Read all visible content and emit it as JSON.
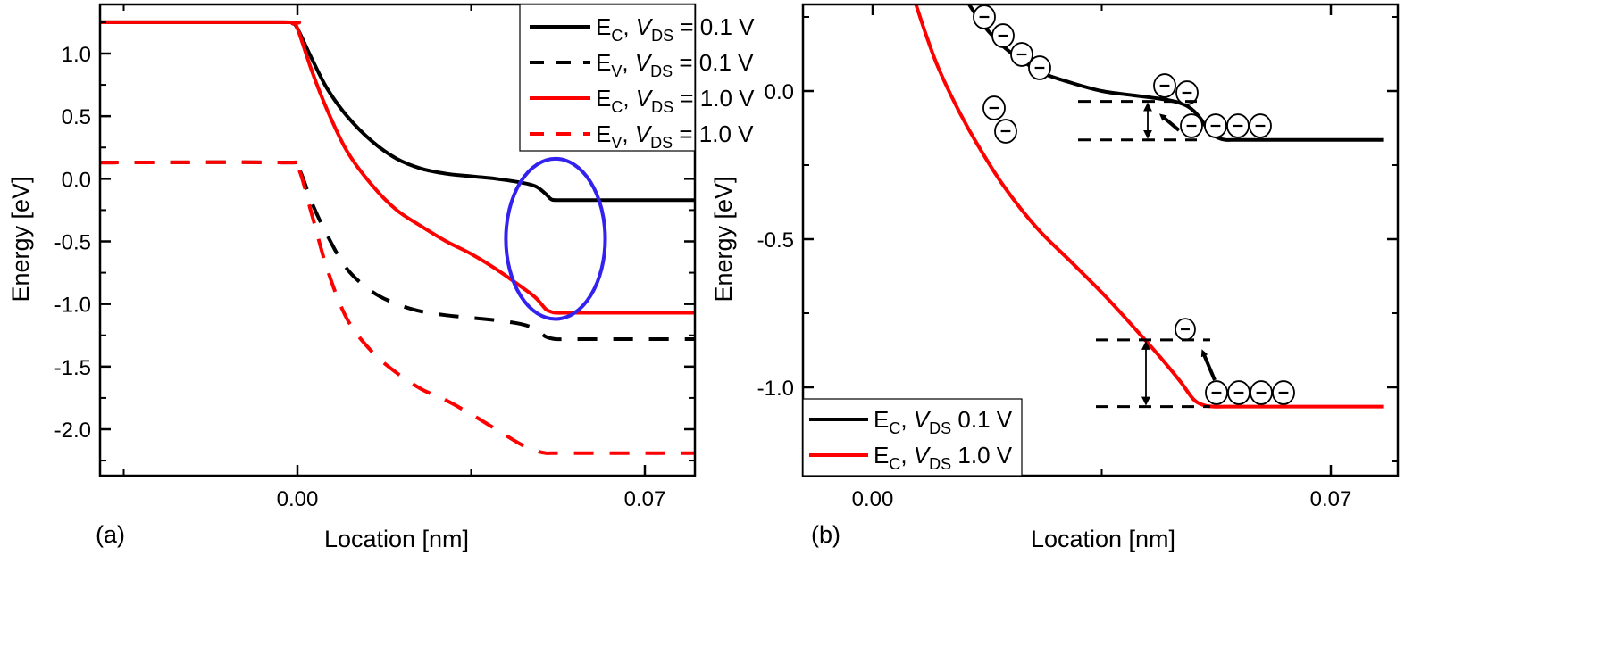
{
  "chart_data": [
    {
      "panel": "(a)",
      "type": "line",
      "xlabel": "Location [nm]",
      "ylabel": "Energy [eV]",
      "xlim": [
        -0.04,
        0.08
      ],
      "ylim": [
        -2.4,
        1.38
      ],
      "xticks": [
        0.0,
        0.07
      ],
      "xtick_labels": [
        "0.00",
        "0.07"
      ],
      "yticks": [
        1.0,
        0.5,
        0.0,
        -0.5,
        -1.0,
        -1.5,
        -2.0
      ],
      "ytick_labels": [
        "1.0",
        "0.5",
        "0.0",
        "-0.5",
        "-1.0",
        "-1.5",
        "-2.0"
      ],
      "grid": false,
      "legend_position": "top-right",
      "series": [
        {
          "name": "E_C, V_DS = 0.1 V",
          "legend": {
            "main": "E",
            "sub": "C",
            "mid": ", ",
            "var": "V",
            "varsub": "DS",
            "tail": " = 0.1 V"
          },
          "color": "#000000",
          "dash": "solid",
          "x": [
            -0.04,
            -0.003,
            -0.001,
            0.0,
            0.003,
            0.006,
            0.01,
            0.015,
            0.02,
            0.025,
            0.03,
            0.035,
            0.04,
            0.045,
            0.048,
            0.05,
            0.051,
            0.052,
            0.055,
            0.06,
            0.07,
            0.08
          ],
          "y": [
            1.25,
            1.25,
            1.24,
            1.2,
            0.95,
            0.72,
            0.5,
            0.3,
            0.16,
            0.08,
            0.04,
            0.02,
            0.0,
            -0.03,
            -0.06,
            -0.12,
            -0.16,
            -0.17,
            -0.17,
            -0.17,
            -0.17,
            -0.17
          ]
        },
        {
          "name": "E_V, V_DS = 0.1 V",
          "legend": {
            "main": "E",
            "sub": "V",
            "mid": ", ",
            "var": "V",
            "varsub": "DS",
            "tail": " = 0.1 V"
          },
          "color": "#000000",
          "dash": "dashed",
          "x": [
            -0.04,
            -0.003,
            0.0,
            0.003,
            0.006,
            0.01,
            0.015,
            0.02,
            0.025,
            0.03,
            0.035,
            0.04,
            0.045,
            0.048,
            0.05,
            0.052,
            0.055,
            0.06,
            0.07,
            0.08
          ],
          "y": [
            0.13,
            0.13,
            0.1,
            -0.2,
            -0.45,
            -0.72,
            -0.9,
            -1.0,
            -1.06,
            -1.09,
            -1.11,
            -1.13,
            -1.16,
            -1.2,
            -1.26,
            -1.28,
            -1.28,
            -1.28,
            -1.28,
            -1.28
          ]
        },
        {
          "name": "E_C, V_DS = 1.0 V",
          "legend": {
            "main": "E",
            "sub": "C",
            "mid": ", ",
            "var": "V",
            "varsub": "DS",
            "tail": " = 1.0 V"
          },
          "color": "#ff0000",
          "dash": "solid",
          "x": [
            -0.04,
            -0.003,
            -0.001,
            0.0,
            0.003,
            0.006,
            0.01,
            0.015,
            0.02,
            0.025,
            0.03,
            0.035,
            0.04,
            0.045,
            0.048,
            0.05,
            0.051,
            0.052,
            0.055,
            0.06,
            0.07,
            0.08
          ],
          "y": [
            1.25,
            1.25,
            1.24,
            1.2,
            0.85,
            0.55,
            0.22,
            -0.05,
            -0.25,
            -0.38,
            -0.5,
            -0.6,
            -0.72,
            -0.86,
            -0.95,
            -1.04,
            -1.06,
            -1.07,
            -1.07,
            -1.07,
            -1.07,
            -1.07
          ]
        },
        {
          "name": "E_V, V_DS = 1.0 V",
          "legend": {
            "main": "E",
            "sub": "V",
            "mid": ", ",
            "var": "V",
            "varsub": "DS",
            "tail": " = 1.0 V"
          },
          "color": "#ff0000",
          "dash": "dashed",
          "x": [
            -0.04,
            -0.003,
            0.0,
            0.003,
            0.006,
            0.01,
            0.015,
            0.02,
            0.025,
            0.03,
            0.035,
            0.04,
            0.045,
            0.048,
            0.05,
            0.052,
            0.055,
            0.06,
            0.07,
            0.08
          ],
          "y": [
            0.13,
            0.13,
            0.1,
            -0.3,
            -0.72,
            -1.12,
            -1.38,
            -1.55,
            -1.68,
            -1.77,
            -1.88,
            -2.0,
            -2.12,
            -2.17,
            -2.19,
            -2.19,
            -2.19,
            -2.19,
            -2.19,
            -2.19
          ]
        }
      ],
      "annotations": [
        {
          "type": "ellipse",
          "description": "highlight of E_C step region",
          "color": "#3322ee",
          "center_x": 0.052,
          "center_y": -0.48,
          "rx": 0.01,
          "ry": 0.64
        }
      ]
    },
    {
      "panel": "(b)",
      "type": "line",
      "xlabel": "Location [nm]",
      "ylabel": "Energy [eV]",
      "xlim": [
        -0.01,
        0.078
      ],
      "ylim": [
        -1.3,
        0.3
      ],
      "xticks": [
        0.0,
        0.07
      ],
      "xtick_labels": [
        "0.00",
        "0.07"
      ],
      "yticks": [
        0.0,
        -0.5,
        -1.0
      ],
      "ytick_labels": [
        "0.0",
        "-0.5",
        "-1.0"
      ],
      "grid": false,
      "legend_position": "bottom-left",
      "series": [
        {
          "name": "E_C, V_DS 0.1 V",
          "legend": {
            "main": "E",
            "sub": "C",
            "mid": ", ",
            "var": "V",
            "varsub": "DS",
            "tail": " 0.1 V"
          },
          "color": "#000000",
          "dash": "solid",
          "x": [
            0.0145,
            0.017,
            0.02,
            0.023,
            0.026,
            0.03,
            0.035,
            0.04,
            0.045,
            0.048,
            0.05,
            0.0515,
            0.053,
            0.054,
            0.055,
            0.06,
            0.07,
            0.078
          ],
          "y": [
            0.3,
            0.22,
            0.15,
            0.1,
            0.06,
            0.03,
            0.0,
            -0.015,
            -0.03,
            -0.05,
            -0.09,
            -0.14,
            -0.16,
            -0.165,
            -0.165,
            -0.165,
            -0.165,
            -0.165
          ]
        },
        {
          "name": "E_C, V_DS 1.0 V",
          "legend": {
            "main": "E",
            "sub": "C",
            "mid": ", ",
            "var": "V",
            "varsub": "DS",
            "tail": " 1.0 V"
          },
          "color": "#ff0000",
          "dash": "solid",
          "x": [
            0.0065,
            0.008,
            0.01,
            0.013,
            0.016,
            0.02,
            0.025,
            0.03,
            0.035,
            0.04,
            0.044,
            0.047,
            0.049,
            0.0505,
            0.052,
            0.055,
            0.06,
            0.07,
            0.078
          ],
          "y": [
            0.3,
            0.2,
            0.08,
            -0.06,
            -0.18,
            -0.32,
            -0.46,
            -0.57,
            -0.68,
            -0.8,
            -0.9,
            -0.98,
            -1.04,
            -1.06,
            -1.065,
            -1.065,
            -1.065,
            -1.065,
            -1.065
          ]
        }
      ],
      "annotations": [
        {
          "type": "electron-group",
          "symbol": "⊖",
          "count": 4,
          "along": "E_C, V_DS 0.1 V",
          "region": "upper-left slope"
        },
        {
          "type": "electron-group",
          "symbol": "⊖",
          "count": 2,
          "along": "E_C, V_DS 1.0 V",
          "region": "upper slope"
        },
        {
          "type": "electron-group",
          "symbol": "⊖",
          "count": 2,
          "along": "E_C, V_DS 0.1 V",
          "region": "near step, excited"
        },
        {
          "type": "electron-group",
          "symbol": "⊖",
          "count": 4,
          "along": "E_C, V_DS 0.1 V",
          "region": "flat right side"
        },
        {
          "type": "electron-group",
          "symbol": "⊖",
          "count": 1,
          "along": "E_C, V_DS 1.0 V",
          "region": "near step, excited"
        },
        {
          "type": "electron-group",
          "symbol": "⊖",
          "count": 4,
          "along": "E_C, V_DS 1.0 V",
          "region": "flat right side"
        },
        {
          "type": "barrier-height-marker",
          "levels": [
            -0.035,
            -0.165
          ],
          "description": "dashed lines with double arrow, V_DS 0.1 V"
        },
        {
          "type": "barrier-height-marker",
          "levels": [
            -0.84,
            -1.065
          ],
          "description": "dashed lines with double arrow, V_DS 1.0 V"
        }
      ]
    }
  ],
  "labels": {
    "panel_a": "(a)",
    "panel_b": "(b)",
    "electron_symbol": "−"
  }
}
